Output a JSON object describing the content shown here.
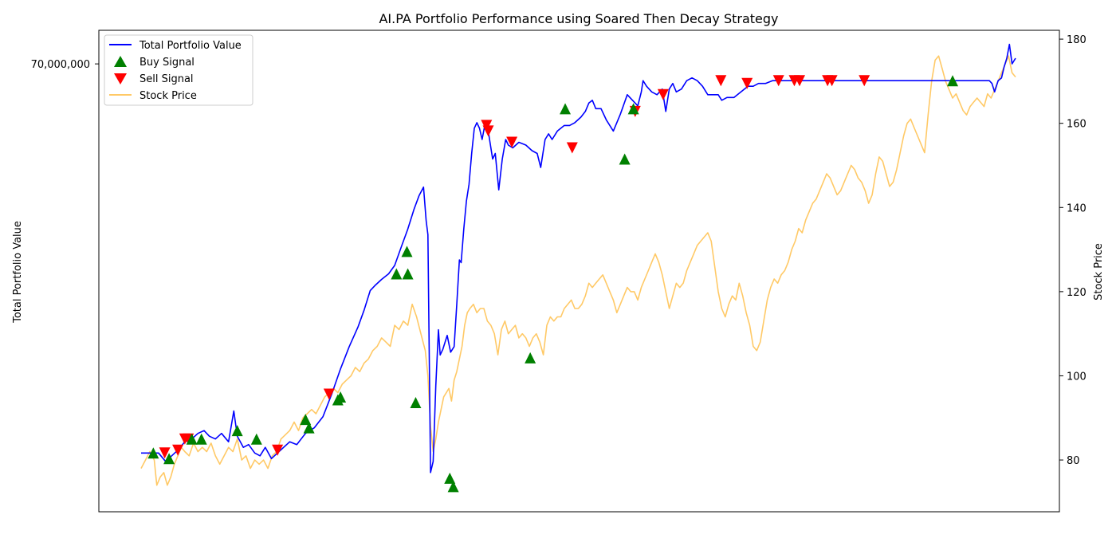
{
  "chart_data": {
    "type": "line",
    "title": "AI.PA Portfolio Performance using Soared Then Decay Strategy",
    "ylabel": "Total Portfolio Value",
    "y2label": "Stock Price",
    "ylim_left": [
      54000000,
      71200000
    ],
    "left_ticks": [
      {
        "value": 70000000,
        "label": "70,000,000"
      }
    ],
    "ylim_right": [
      67.7,
      182.1
    ],
    "right_ticks": [
      80,
      100,
      120,
      140,
      160,
      180
    ],
    "xlim": [
      0,
      1000
    ],
    "grid": false,
    "legend": {
      "position": "upper-left",
      "entries": [
        {
          "label": "Total Portfolio Value",
          "kind": "line",
          "color": "#0000ff"
        },
        {
          "label": "Buy Signal",
          "kind": "triangle-up",
          "color": "#008000"
        },
        {
          "label": "Sell Signal",
          "kind": "triangle-down",
          "color": "#ff0000"
        },
        {
          "label": "Stock Price",
          "kind": "line",
          "color": "#ffa500",
          "alpha": 0.6
        }
      ]
    },
    "series": [
      {
        "name": "Total Portfolio Value",
        "axis": "left",
        "color": "#0000ff",
        "x": [
          0,
          12,
          20,
          28,
          35,
          42,
          50,
          58,
          65,
          72,
          78,
          85,
          92,
          100,
          106,
          110,
          117,
          123,
          130,
          136,
          142,
          149,
          156,
          163,
          170,
          178,
          188,
          198,
          208,
          218,
          228,
          238,
          248,
          255,
          262,
          268,
          275,
          283,
          290,
          298,
          305,
          312,
          318,
          323,
          326,
          328,
          331,
          334,
          337,
          340,
          342,
          345,
          350,
          354,
          358,
          361,
          364,
          366,
          369,
          372,
          375,
          378,
          381,
          384,
          387,
          390,
          393,
          396,
          399,
          402,
          405,
          409,
          413,
          417,
          420,
          425,
          432,
          440,
          447,
          453,
          457,
          462,
          466,
          470,
          476,
          484,
          490,
          496,
          503,
          508,
          512,
          516,
          520,
          526,
          532,
          540,
          548,
          556,
          562,
          568,
          572,
          574,
          578,
          584,
          590,
          596,
          600,
          604,
          608,
          612,
          618,
          624,
          630,
          636,
          642,
          648,
          655,
          660,
          664,
          670,
          678,
          686,
          694,
          700,
          706,
          714,
          722,
          730,
          740,
          750,
          760,
          770,
          780,
          790,
          800,
          810,
          820,
          830,
          840,
          850,
          860,
          870,
          880,
          890,
          900,
          910,
          920,
          930,
          940,
          950,
          955,
          960,
          963,
          966,
          970,
          973,
          976,
          980,
          984,
          987,
          990,
          993,
          996,
          1000
        ],
        "values": [
          56100000,
          56100000,
          56100000,
          55800000,
          56000000,
          56200000,
          56500000,
          56600000,
          56800000,
          56900000,
          56700000,
          56600000,
          56800000,
          56500000,
          57600000,
          56700000,
          56300000,
          56400000,
          56100000,
          56000000,
          56300000,
          55900000,
          56100000,
          56300000,
          56500000,
          56400000,
          56800000,
          57000000,
          57400000,
          58200000,
          59100000,
          59900000,
          60600000,
          61200000,
          61900000,
          62100000,
          62300000,
          62500000,
          62800000,
          63500000,
          64100000,
          64800000,
          65300000,
          65600000,
          64400000,
          63900000,
          55400000,
          55800000,
          58500000,
          60500000,
          59600000,
          59800000,
          60300000,
          59700000,
          59900000,
          61400000,
          63000000,
          62900000,
          64100000,
          65100000,
          65700000,
          66800000,
          67700000,
          67900000,
          67700000,
          67300000,
          67800000,
          67800000,
          67200000,
          66600000,
          66800000,
          65500000,
          66600000,
          67300000,
          67100000,
          67000000,
          67200000,
          67100000,
          66900000,
          66800000,
          66300000,
          67300000,
          67500000,
          67300000,
          67600000,
          67800000,
          67800000,
          67900000,
          68100000,
          68300000,
          68600000,
          68700000,
          68400000,
          68400000,
          68000000,
          67600000,
          68200000,
          68900000,
          68700000,
          68500000,
          69000000,
          69400000,
          69200000,
          69000000,
          68900000,
          69100000,
          68300000,
          69100000,
          69300000,
          69000000,
          69100000,
          69400000,
          69500000,
          69400000,
          69200000,
          68900000,
          68900000,
          68900000,
          68700000,
          68800000,
          68800000,
          69000000,
          69200000,
          69200000,
          69300000,
          69300000,
          69400000,
          69400000,
          69400000,
          69400000,
          69400000,
          69400000,
          69400000,
          69400000,
          69400000,
          69400000,
          69400000,
          69400000,
          69400000,
          69400000,
          69400000,
          69400000,
          69400000,
          69400000,
          69400000,
          69400000,
          69400000,
          69400000,
          69400000,
          69400000,
          69400000,
          69400000,
          69400000,
          69400000,
          69400000,
          69300000,
          69000000,
          69400000,
          69500000,
          69900000,
          70200000,
          70700000,
          70000000,
          70200000
        ]
      },
      {
        "name": "Stock Price",
        "axis": "right",
        "color": "#ffa500",
        "x": [
          0,
          5,
          10,
          15,
          18,
          22,
          26,
          30,
          34,
          38,
          42,
          46,
          50,
          55,
          60,
          65,
          70,
          75,
          80,
          85,
          90,
          95,
          100,
          105,
          110,
          115,
          120,
          125,
          130,
          135,
          140,
          145,
          150,
          155,
          160,
          165,
          170,
          175,
          180,
          185,
          190,
          195,
          200,
          205,
          210,
          215,
          220,
          225,
          230,
          235,
          240,
          245,
          250,
          255,
          260,
          265,
          270,
          275,
          280,
          285,
          290,
          295,
          300,
          305,
          310,
          315,
          320,
          325,
          328,
          331,
          334,
          337,
          340,
          343,
          346,
          349,
          352,
          355,
          358,
          361,
          364,
          367,
          370,
          373,
          376,
          380,
          384,
          388,
          392,
          396,
          400,
          404,
          408,
          412,
          416,
          420,
          424,
          428,
          432,
          436,
          440,
          444,
          448,
          452,
          456,
          460,
          464,
          468,
          472,
          476,
          480,
          484,
          488,
          492,
          496,
          500,
          504,
          508,
          512,
          516,
          520,
          524,
          528,
          532,
          536,
          540,
          544,
          548,
          552,
          556,
          560,
          564,
          568,
          572,
          576,
          580,
          584,
          588,
          592,
          596,
          600,
          604,
          608,
          612,
          616,
          620,
          624,
          628,
          632,
          636,
          640,
          644,
          648,
          652,
          656,
          660,
          664,
          668,
          672,
          676,
          680,
          684,
          688,
          692,
          696,
          700,
          704,
          708,
          712,
          716,
          720,
          724,
          728,
          732,
          736,
          740,
          744,
          748,
          752,
          756,
          760,
          764,
          768,
          772,
          776,
          780,
          784,
          788,
          792,
          796,
          800,
          804,
          808,
          812,
          816,
          820,
          824,
          828,
          832,
          836,
          840,
          844,
          848,
          852,
          856,
          860,
          864,
          868,
          872,
          876,
          880,
          884,
          888,
          892,
          896,
          900,
          904,
          908,
          912,
          916,
          920,
          924,
          928,
          932,
          936,
          940,
          944,
          948,
          952,
          956,
          960,
          964,
          968,
          972,
          976,
          980,
          984,
          988,
          992,
          996,
          1000
        ],
        "values": [
          78,
          80,
          82,
          80,
          74,
          76,
          77,
          74,
          76,
          79,
          81,
          83,
          82,
          81,
          84,
          82,
          83,
          82,
          84,
          81,
          79,
          81,
          83,
          82,
          85,
          80,
          81,
          78,
          80,
          79,
          80,
          78,
          81,
          82,
          85,
          86,
          87,
          89,
          87,
          90,
          91,
          92,
          91,
          93,
          95,
          96,
          97,
          96,
          98,
          99,
          100,
          102,
          101,
          103,
          104,
          106,
          107,
          109,
          108,
          107,
          112,
          111,
          113,
          112,
          117,
          114,
          110,
          106,
          100,
          88,
          82,
          85,
          89,
          92,
          95,
          96,
          97,
          94,
          99,
          101,
          104,
          107,
          112,
          115,
          116,
          117,
          115,
          116,
          116,
          113,
          112,
          110,
          105,
          111,
          113,
          110,
          111,
          112,
          109,
          110,
          109,
          107,
          109,
          110,
          108,
          105,
          112,
          114,
          113,
          114,
          114,
          116,
          117,
          118,
          116,
          116,
          117,
          119,
          122,
          121,
          122,
          123,
          124,
          122,
          120,
          118,
          115,
          117,
          119,
          121,
          120,
          120,
          118,
          121,
          123,
          125,
          127,
          129,
          127,
          124,
          120,
          116,
          119,
          122,
          121,
          122,
          125,
          127,
          129,
          131,
          132,
          133,
          134,
          132,
          126,
          120,
          116,
          114,
          117,
          119,
          118,
          122,
          119,
          115,
          112,
          107,
          106,
          108,
          113,
          118,
          121,
          123,
          122,
          124,
          125,
          127,
          130,
          132,
          135,
          134,
          137,
          139,
          141,
          142,
          144,
          146,
          148,
          147,
          145,
          143,
          144,
          146,
          148,
          150,
          149,
          147,
          146,
          144,
          141,
          143,
          148,
          152,
          151,
          148,
          145,
          146,
          149,
          153,
          157,
          160,
          161,
          159,
          157,
          155,
          153,
          162,
          170,
          175,
          176,
          173,
          170,
          168,
          166,
          167,
          165,
          163,
          162,
          164,
          165,
          166,
          165,
          164,
          167,
          166,
          168,
          170,
          172,
          174,
          176,
          172,
          171
        ]
      }
    ],
    "markers": {
      "buy": {
        "label": "Buy Signal",
        "color": "#008000",
        "x": [
          14,
          32,
          58,
          69,
          110,
          132,
          188,
          192,
          225,
          228,
          292,
          304,
          305,
          314,
          353,
          357,
          445,
          485,
          553,
          563,
          928
        ],
        "values": [
          56100000,
          55900000,
          56600000,
          56600000,
          56900000,
          56600000,
          57300000,
          57000000,
          58000000,
          58100000,
          62500000,
          63300000,
          62500000,
          57900000,
          55200000,
          54900000,
          59500000,
          68400000,
          66600000,
          68400000,
          69400000
        ]
      },
      "sell": {
        "label": "Sell Signal",
        "color": "#ff0000",
        "x": [
          27,
          42,
          50,
          54,
          156,
          215,
          395,
          397,
          424,
          493,
          565,
          597,
          663,
          693,
          729,
          747,
          753,
          785,
          790,
          827
        ],
        "values": [
          56100000,
          56200000,
          56600000,
          56600000,
          56200000,
          58200000,
          67800000,
          67600000,
          67200000,
          67000000,
          68300000,
          68900000,
          69400000,
          69300000,
          69400000,
          69400000,
          69400000,
          69400000,
          69400000,
          69400000
        ]
      }
    }
  }
}
